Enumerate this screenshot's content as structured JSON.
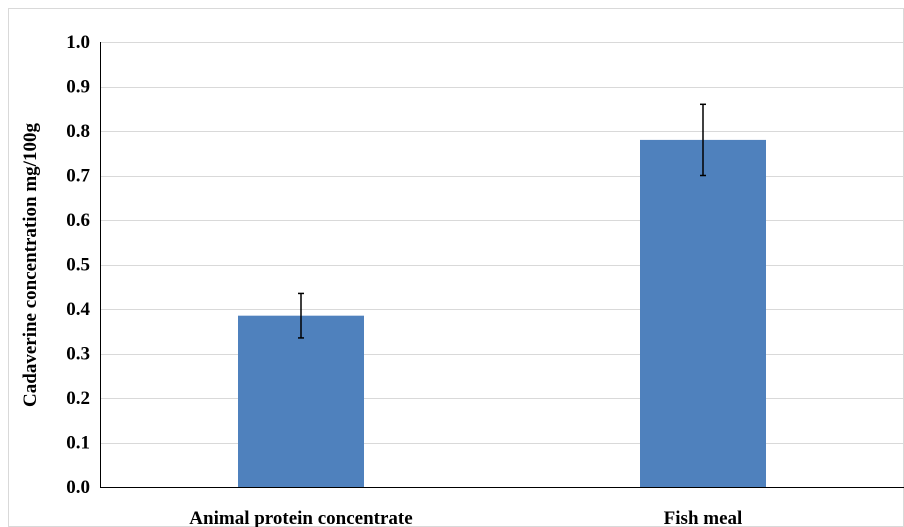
{
  "chart_data": {
    "type": "bar",
    "title": "",
    "xlabel": "",
    "ylabel": "Cadaverine concentration mg/100g",
    "categories": [
      "Animal protein concentrate",
      "Fish meal"
    ],
    "values": [
      0.385,
      0.78
    ],
    "errors": [
      0.05,
      0.08
    ],
    "ylim": [
      0.0,
      1.0
    ],
    "yticks": [
      "0.0",
      "0.1",
      "0.2",
      "0.3",
      "0.4",
      "0.5",
      "0.6",
      "0.7",
      "0.8",
      "0.9",
      "1.0"
    ],
    "grid": true,
    "legend": "none",
    "colors": {
      "bar": "#4f81bd",
      "grid": "#d9d9d9",
      "axis": "#000000",
      "frame": "#d9d9d9",
      "error_bar": "#000000"
    }
  }
}
